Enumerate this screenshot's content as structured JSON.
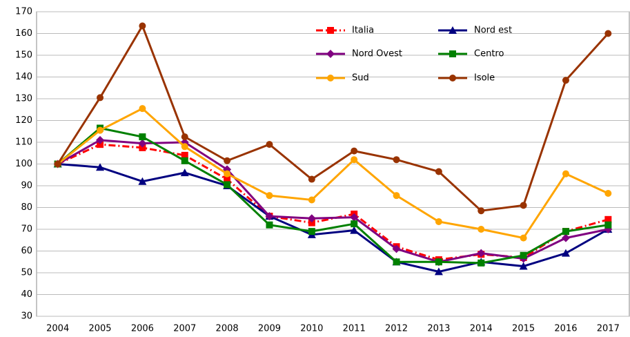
{
  "chart_data": {
    "type": "line",
    "categories": [
      "2004",
      "2005",
      "2006",
      "2007",
      "2008",
      "2009",
      "2010",
      "2011",
      "2012",
      "2013",
      "2014",
      "2015",
      "2016",
      "2017"
    ],
    "series": [
      {
        "name": "Italia",
        "color": "#ff0000",
        "marker": "square",
        "dash": true,
        "values": [
          100,
          109,
          107.5,
          104,
          93,
          76,
          73,
          77,
          62,
          56,
          58.5,
          57,
          69,
          74.5
        ]
      },
      {
        "name": "Nord est",
        "color": "#000080",
        "marker": "triangle",
        "values": [
          100,
          98.5,
          92,
          96,
          90,
          76,
          67.5,
          69.5,
          55,
          50.5,
          55,
          53,
          59,
          70
        ]
      },
      {
        "name": "Nord Ovest",
        "color": "#800080",
        "marker": "diamond",
        "values": [
          100,
          111,
          109.5,
          110,
          97.5,
          76,
          75,
          75.5,
          61,
          55,
          59,
          56.5,
          66,
          70
        ]
      },
      {
        "name": "Centro",
        "color": "#008000",
        "marker": "square",
        "values": [
          100,
          116.5,
          112.5,
          101.5,
          90.5,
          72,
          69,
          72.5,
          55,
          55,
          54.5,
          58,
          69,
          72
        ]
      },
      {
        "name": "Sud",
        "color": "#ffa500",
        "marker": "circle",
        "values": [
          100,
          115.5,
          125.5,
          108,
          95.5,
          85.5,
          83.5,
          102,
          85.5,
          73.5,
          70,
          66,
          95.5,
          86.5
        ]
      },
      {
        "name": "Isole",
        "color": "#993300",
        "marker": "circle",
        "values": [
          100,
          130.5,
          163.5,
          112.5,
          101.5,
          109,
          93,
          106,
          102,
          96.5,
          78.5,
          81,
          138.5,
          160
        ]
      }
    ],
    "ylim": [
      30,
      170
    ],
    "yticks": [
      30,
      40,
      50,
      60,
      70,
      80,
      90,
      100,
      110,
      120,
      130,
      140,
      150,
      160,
      170
    ],
    "grid": true,
    "legend": "top"
  }
}
